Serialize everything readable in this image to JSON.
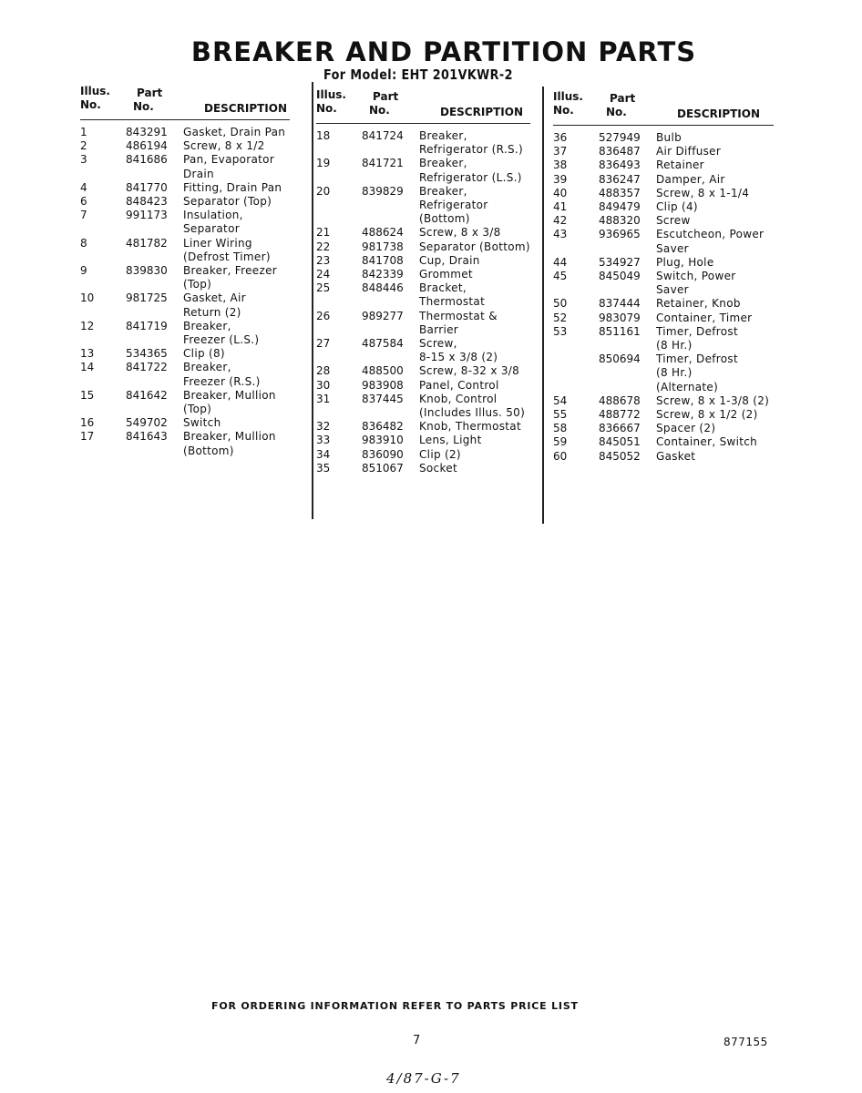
{
  "title": "BREAKER AND PARTITION PARTS",
  "subtitle": "For Model: EHT 201VKWR-2",
  "headers": {
    "illus": [
      "Illus.",
      "No."
    ],
    "part": [
      "Part",
      "No."
    ],
    "description": "DESCRIPTION"
  },
  "columns": [
    [
      {
        "illus": "1",
        "part": "843291",
        "desc": [
          "Gasket, Drain Pan"
        ]
      },
      {
        "illus": "2",
        "part": "486194",
        "desc": [
          "Screw, 8 x 1/2"
        ]
      },
      {
        "illus": "3",
        "part": "841686",
        "desc": [
          "Pan, Evaporator",
          "Drain"
        ]
      },
      {
        "illus": "4",
        "part": "841770",
        "desc": [
          "Fitting, Drain Pan"
        ]
      },
      {
        "illus": "6",
        "part": "848423",
        "desc": [
          "Separator (Top)"
        ]
      },
      {
        "illus": "7",
        "part": "991173",
        "desc": [
          "Insulation,",
          "Separator"
        ]
      },
      {
        "illus": "8",
        "part": "481782",
        "desc": [
          "Liner Wiring",
          "(Defrost Timer)"
        ]
      },
      {
        "illus": "9",
        "part": "839830",
        "desc": [
          "Breaker, Freezer",
          "(Top)"
        ]
      },
      {
        "illus": "10",
        "part": "981725",
        "desc": [
          "Gasket, Air",
          "Return (2)"
        ]
      },
      {
        "illus": "12",
        "part": "841719",
        "desc": [
          "Breaker,",
          "Freezer (L.S.)"
        ]
      },
      {
        "illus": "13",
        "part": "534365",
        "desc": [
          "Clip (8)"
        ]
      },
      {
        "illus": "14",
        "part": "841722",
        "desc": [
          "Breaker,",
          "Freezer (R.S.)"
        ]
      },
      {
        "illus": "15",
        "part": "841642",
        "desc": [
          "Breaker, Mullion",
          "(Top)"
        ]
      },
      {
        "illus": "16",
        "part": "549702",
        "desc": [
          "Switch"
        ]
      },
      {
        "illus": "17",
        "part": "841643",
        "desc": [
          "Breaker, Mullion",
          "(Bottom)"
        ]
      }
    ],
    [
      {
        "illus": "18",
        "part": "841724",
        "desc": [
          "Breaker,",
          "Refrigerator (R.S.)"
        ]
      },
      {
        "illus": "19",
        "part": "841721",
        "desc": [
          "Breaker,",
          "Refrigerator (L.S.)"
        ]
      },
      {
        "illus": "20",
        "part": "839829",
        "desc": [
          "Breaker,",
          "Refrigerator",
          "(Bottom)"
        ]
      },
      {
        "illus": "21",
        "part": "488624",
        "desc": [
          "Screw, 8 x 3/8"
        ]
      },
      {
        "illus": "22",
        "part": "981738",
        "desc": [
          "Separator (Bottom)"
        ]
      },
      {
        "illus": "23",
        "part": "841708",
        "desc": [
          "Cup, Drain"
        ]
      },
      {
        "illus": "24",
        "part": "842339",
        "desc": [
          "Grommet"
        ]
      },
      {
        "illus": "25",
        "part": "848446",
        "desc": [
          "Bracket,",
          "Thermostat"
        ]
      },
      {
        "illus": "26",
        "part": "989277",
        "desc": [
          "Thermostat &",
          "Barrier"
        ]
      },
      {
        "illus": "27",
        "part": "487584",
        "desc": [
          "Screw,",
          "8-15 x 3/8 (2)"
        ]
      },
      {
        "illus": "28",
        "part": "488500",
        "desc": [
          "Screw, 8-32 x 3/8"
        ]
      },
      {
        "illus": "30",
        "part": "983908",
        "desc": [
          "Panel, Control"
        ]
      },
      {
        "illus": "31",
        "part": "837445",
        "desc": [
          "Knob, Control",
          "(Includes Illus. 50)"
        ]
      },
      {
        "illus": "32",
        "part": "836482",
        "desc": [
          "Knob, Thermostat"
        ]
      },
      {
        "illus": "33",
        "part": "983910",
        "desc": [
          "Lens, Light"
        ]
      },
      {
        "illus": "34",
        "part": "836090",
        "desc": [
          "Clip (2)"
        ]
      },
      {
        "illus": "35",
        "part": "851067",
        "desc": [
          "Socket"
        ]
      }
    ],
    [
      {
        "illus": "36",
        "part": "527949",
        "desc": [
          "Bulb"
        ]
      },
      {
        "illus": "37",
        "part": "836487",
        "desc": [
          "Air Diffuser"
        ]
      },
      {
        "illus": "38",
        "part": "836493",
        "desc": [
          "Retainer"
        ]
      },
      {
        "illus": "39",
        "part": "836247",
        "desc": [
          "Damper, Air"
        ]
      },
      {
        "illus": "40",
        "part": "488357",
        "desc": [
          "Screw, 8 x 1-1/4"
        ]
      },
      {
        "illus": "41",
        "part": "849479",
        "desc": [
          "Clip (4)"
        ]
      },
      {
        "illus": "42",
        "part": "488320",
        "desc": [
          "Screw"
        ]
      },
      {
        "illus": "43",
        "part": "936965",
        "desc": [
          "Escutcheon, Power",
          "Saver"
        ]
      },
      {
        "illus": "44",
        "part": "534927",
        "desc": [
          "Plug, Hole"
        ]
      },
      {
        "illus": "45",
        "part": "845049",
        "desc": [
          "Switch, Power",
          "Saver"
        ]
      },
      {
        "illus": "50",
        "part": "837444",
        "desc": [
          "Retainer, Knob"
        ]
      },
      {
        "illus": "52",
        "part": "983079",
        "desc": [
          "Container, Timer"
        ]
      },
      {
        "illus": "53",
        "part": "851161",
        "desc": [
          "Timer, Defrost",
          "(8 Hr.)"
        ]
      },
      {
        "illus": "",
        "part": "850694",
        "desc": [
          "Timer, Defrost",
          "(8 Hr.)",
          "(Alternate)"
        ]
      },
      {
        "illus": "54",
        "part": "488678",
        "desc": [
          "Screw, 8 x 1-3/8 (2)"
        ]
      },
      {
        "illus": "55",
        "part": "488772",
        "desc": [
          "Screw, 8 x 1/2 (2)"
        ]
      },
      {
        "illus": "58",
        "part": "836667",
        "desc": [
          "Spacer (2)"
        ]
      },
      {
        "illus": "59",
        "part": "845051",
        "desc": [
          "Container, Switch"
        ]
      },
      {
        "illus": "60",
        "part": "845052",
        "desc": [
          "Gasket"
        ]
      }
    ]
  ],
  "footer": "FOR ORDERING INFORMATION REFER TO PARTS PRICE LIST",
  "page_number": "7",
  "document_number": "877155",
  "handwritten_note": "4/87-G-7"
}
